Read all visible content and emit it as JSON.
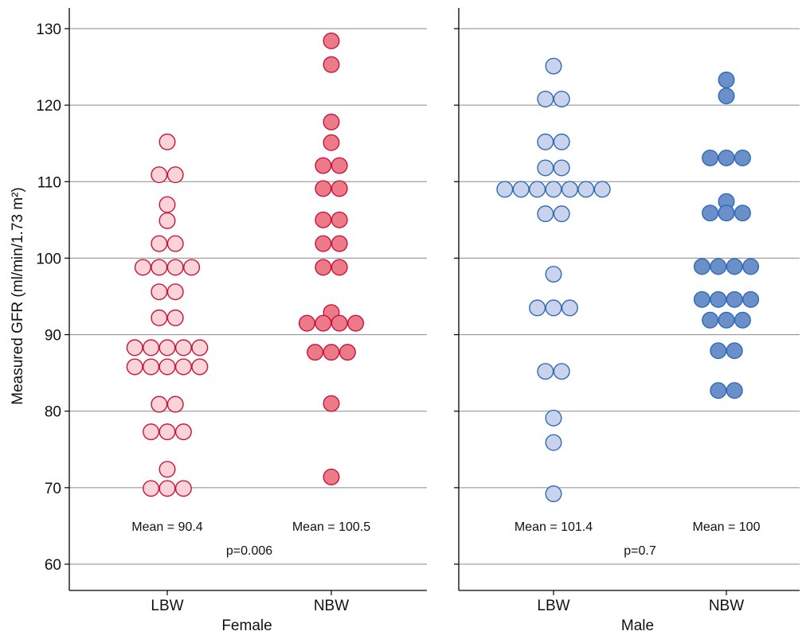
{
  "chart_data": {
    "type": "scatter",
    "title": "",
    "ylabel": "Measured GFR (ml/min/1.73 m²)",
    "ylim": [
      55,
      132
    ],
    "yticks": [
      60,
      70,
      80,
      90,
      100,
      110,
      120,
      130
    ],
    "grid": true,
    "panels": [
      {
        "name": "Female",
        "p_text": "p=0.006",
        "groups": [
          {
            "label": "LBW",
            "mean_text": "Mean = 90.4",
            "fill": "#f9d3d8",
            "stroke": "#c8143c",
            "values": [
              115.2,
              110.9,
              110.9,
              107.0,
              104.9,
              101.9,
              101.9,
              98.8,
              98.8,
              98.8,
              98.8,
              95.6,
              95.6,
              92.2,
              92.2,
              88.3,
              88.3,
              88.3,
              88.3,
              88.3,
              85.8,
              85.8,
              85.8,
              85.8,
              85.8,
              80.9,
              80.9,
              77.3,
              77.3,
              77.3,
              72.4,
              69.9,
              69.9,
              69.9
            ]
          },
          {
            "label": "NBW",
            "mean_text": "Mean = 100.5",
            "fill": "#ec7a89",
            "stroke": "#c8143c",
            "values": [
              128.4,
              125.3,
              117.8,
              115.1,
              112.1,
              112.1,
              109.1,
              109.1,
              105.0,
              105.0,
              101.9,
              101.9,
              98.8,
              98.8,
              92.9,
              91.5,
              91.5,
              91.5,
              91.5,
              87.7,
              87.7,
              87.7,
              81.0,
              71.4
            ]
          }
        ]
      },
      {
        "name": "Male",
        "p_text": "p=0.7",
        "groups": [
          {
            "label": "LBW",
            "mean_text": "Mean = 101.4",
            "fill": "#c9d4ec",
            "stroke": "#2e6ab5",
            "values": [
              125.1,
              120.8,
              120.8,
              115.2,
              115.2,
              111.8,
              111.8,
              109.0,
              109.0,
              109.0,
              109.0,
              109.0,
              109.0,
              109.0,
              105.8,
              105.8,
              97.9,
              93.5,
              93.5,
              93.5,
              85.2,
              85.2,
              79.1,
              75.9,
              69.2
            ]
          },
          {
            "label": "NBW",
            "mean_text": "Mean = 100",
            "fill": "#6b8fc9",
            "stroke": "#2e6ab5",
            "values": [
              123.3,
              121.2,
              113.1,
              113.1,
              113.1,
              107.4,
              105.9,
              105.9,
              105.9,
              98.9,
              98.9,
              98.9,
              98.9,
              94.6,
              94.6,
              94.6,
              94.6,
              91.9,
              91.9,
              91.9,
              87.9,
              87.9,
              82.7,
              82.7
            ]
          }
        ]
      }
    ]
  }
}
